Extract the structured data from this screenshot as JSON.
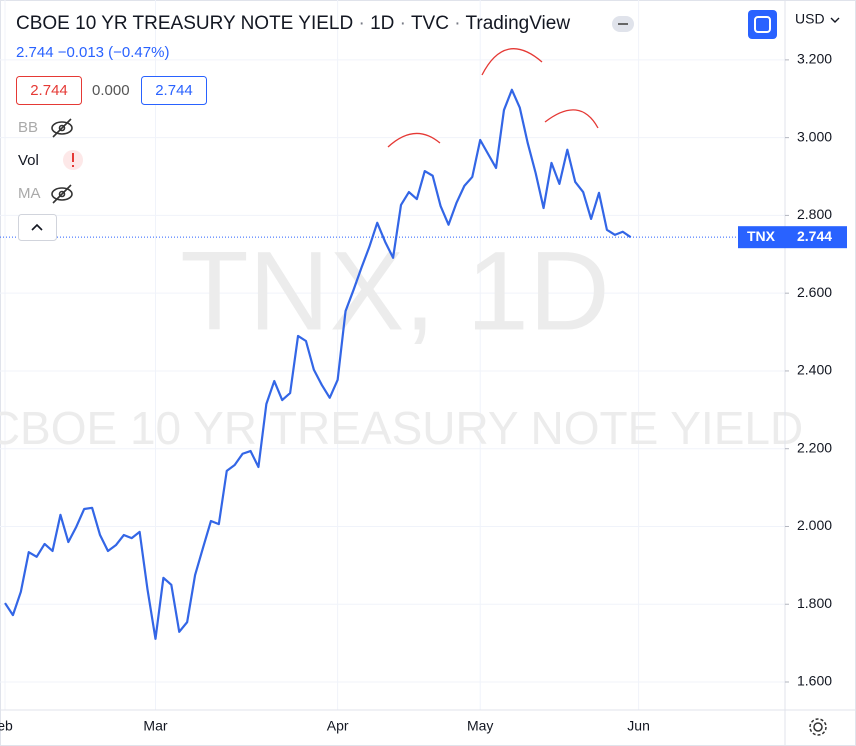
{
  "chart_data": {
    "type": "line",
    "title": "CBOE 10 YR TREASURY NOTE YIELD",
    "header": [
      "CBOE 10 YR TREASURY NOTE YIELD",
      "1D",
      "TVC",
      "TradingView"
    ],
    "change_line": "2.744 −0.013 (−0.47%)",
    "ohlc_boxes": [
      "2.744",
      "0.000",
      "2.744"
    ],
    "indicators": [
      "BB",
      "Vol",
      "MA"
    ],
    "currency": "USD",
    "watermark": [
      "TNX, 1D",
      "CBOE 10 YR TREASURY NOTE YIELD"
    ],
    "symbol": "TNX",
    "last_price": 2.744,
    "categories": [
      "eb",
      null,
      null,
      null,
      null,
      null,
      null,
      null,
      null,
      null,
      null,
      null,
      null,
      null,
      null,
      null,
      null,
      null,
      null,
      "Mar",
      null,
      null,
      null,
      null,
      null,
      null,
      null,
      null,
      null,
      null,
      null,
      null,
      null,
      null,
      null,
      null,
      null,
      null,
      null,
      null,
      null,
      null,
      "Apr",
      null,
      null,
      null,
      null,
      null,
      null,
      null,
      null,
      null,
      null,
      null,
      null,
      null,
      null,
      null,
      null,
      null,
      "May",
      null,
      null,
      null,
      null,
      null,
      null,
      null,
      null,
      null,
      null,
      null,
      null,
      null,
      null,
      null,
      null,
      null,
      null,
      null,
      "Jun"
    ],
    "series": [
      {
        "name": "TNX",
        "color": "#3366e6",
        "values": [
          1.803,
          1.772,
          1.832,
          1.934,
          1.922,
          1.955,
          1.937,
          2.03,
          1.96,
          1.999,
          2.045,
          2.048,
          1.978,
          1.937,
          1.952,
          1.978,
          1.97,
          1.986,
          1.837,
          1.711,
          1.868,
          1.85,
          1.729,
          1.754,
          1.875,
          1.945,
          2.014,
          2.006,
          2.143,
          2.158,
          2.187,
          2.194,
          2.153,
          2.315,
          2.374,
          2.325,
          2.343,
          2.49,
          2.477,
          2.403,
          2.364,
          2.331,
          2.377,
          2.554,
          2.608,
          2.665,
          2.719,
          2.781,
          2.732,
          2.691,
          2.827,
          2.86,
          2.842,
          2.914,
          2.902,
          2.824,
          2.776,
          2.832,
          2.876,
          2.899,
          2.994,
          2.958,
          2.922,
          3.071,
          3.123,
          3.077,
          2.986,
          2.909,
          2.819,
          2.935,
          2.881,
          2.969,
          2.886,
          2.86,
          2.791,
          2.858,
          2.763,
          2.75,
          2.758,
          2.744,
          null
        ]
      }
    ],
    "ylim": [
      1.528,
      3.354
    ],
    "yticks": [
      {
        "value": 1.6,
        "label": "1.600"
      },
      {
        "value": 1.8,
        "label": "1.800"
      },
      {
        "value": 2.0,
        "label": "2.000"
      },
      {
        "value": 2.2,
        "label": "2.200"
      },
      {
        "value": 2.4,
        "label": "2.400"
      },
      {
        "value": 2.6,
        "label": "2.600"
      },
      {
        "value": 2.8,
        "label": "2.800"
      },
      {
        "value": 3.0,
        "label": "3.000"
      },
      {
        "value": 3.2,
        "label": "3.200"
      }
    ],
    "grid": true
  }
}
